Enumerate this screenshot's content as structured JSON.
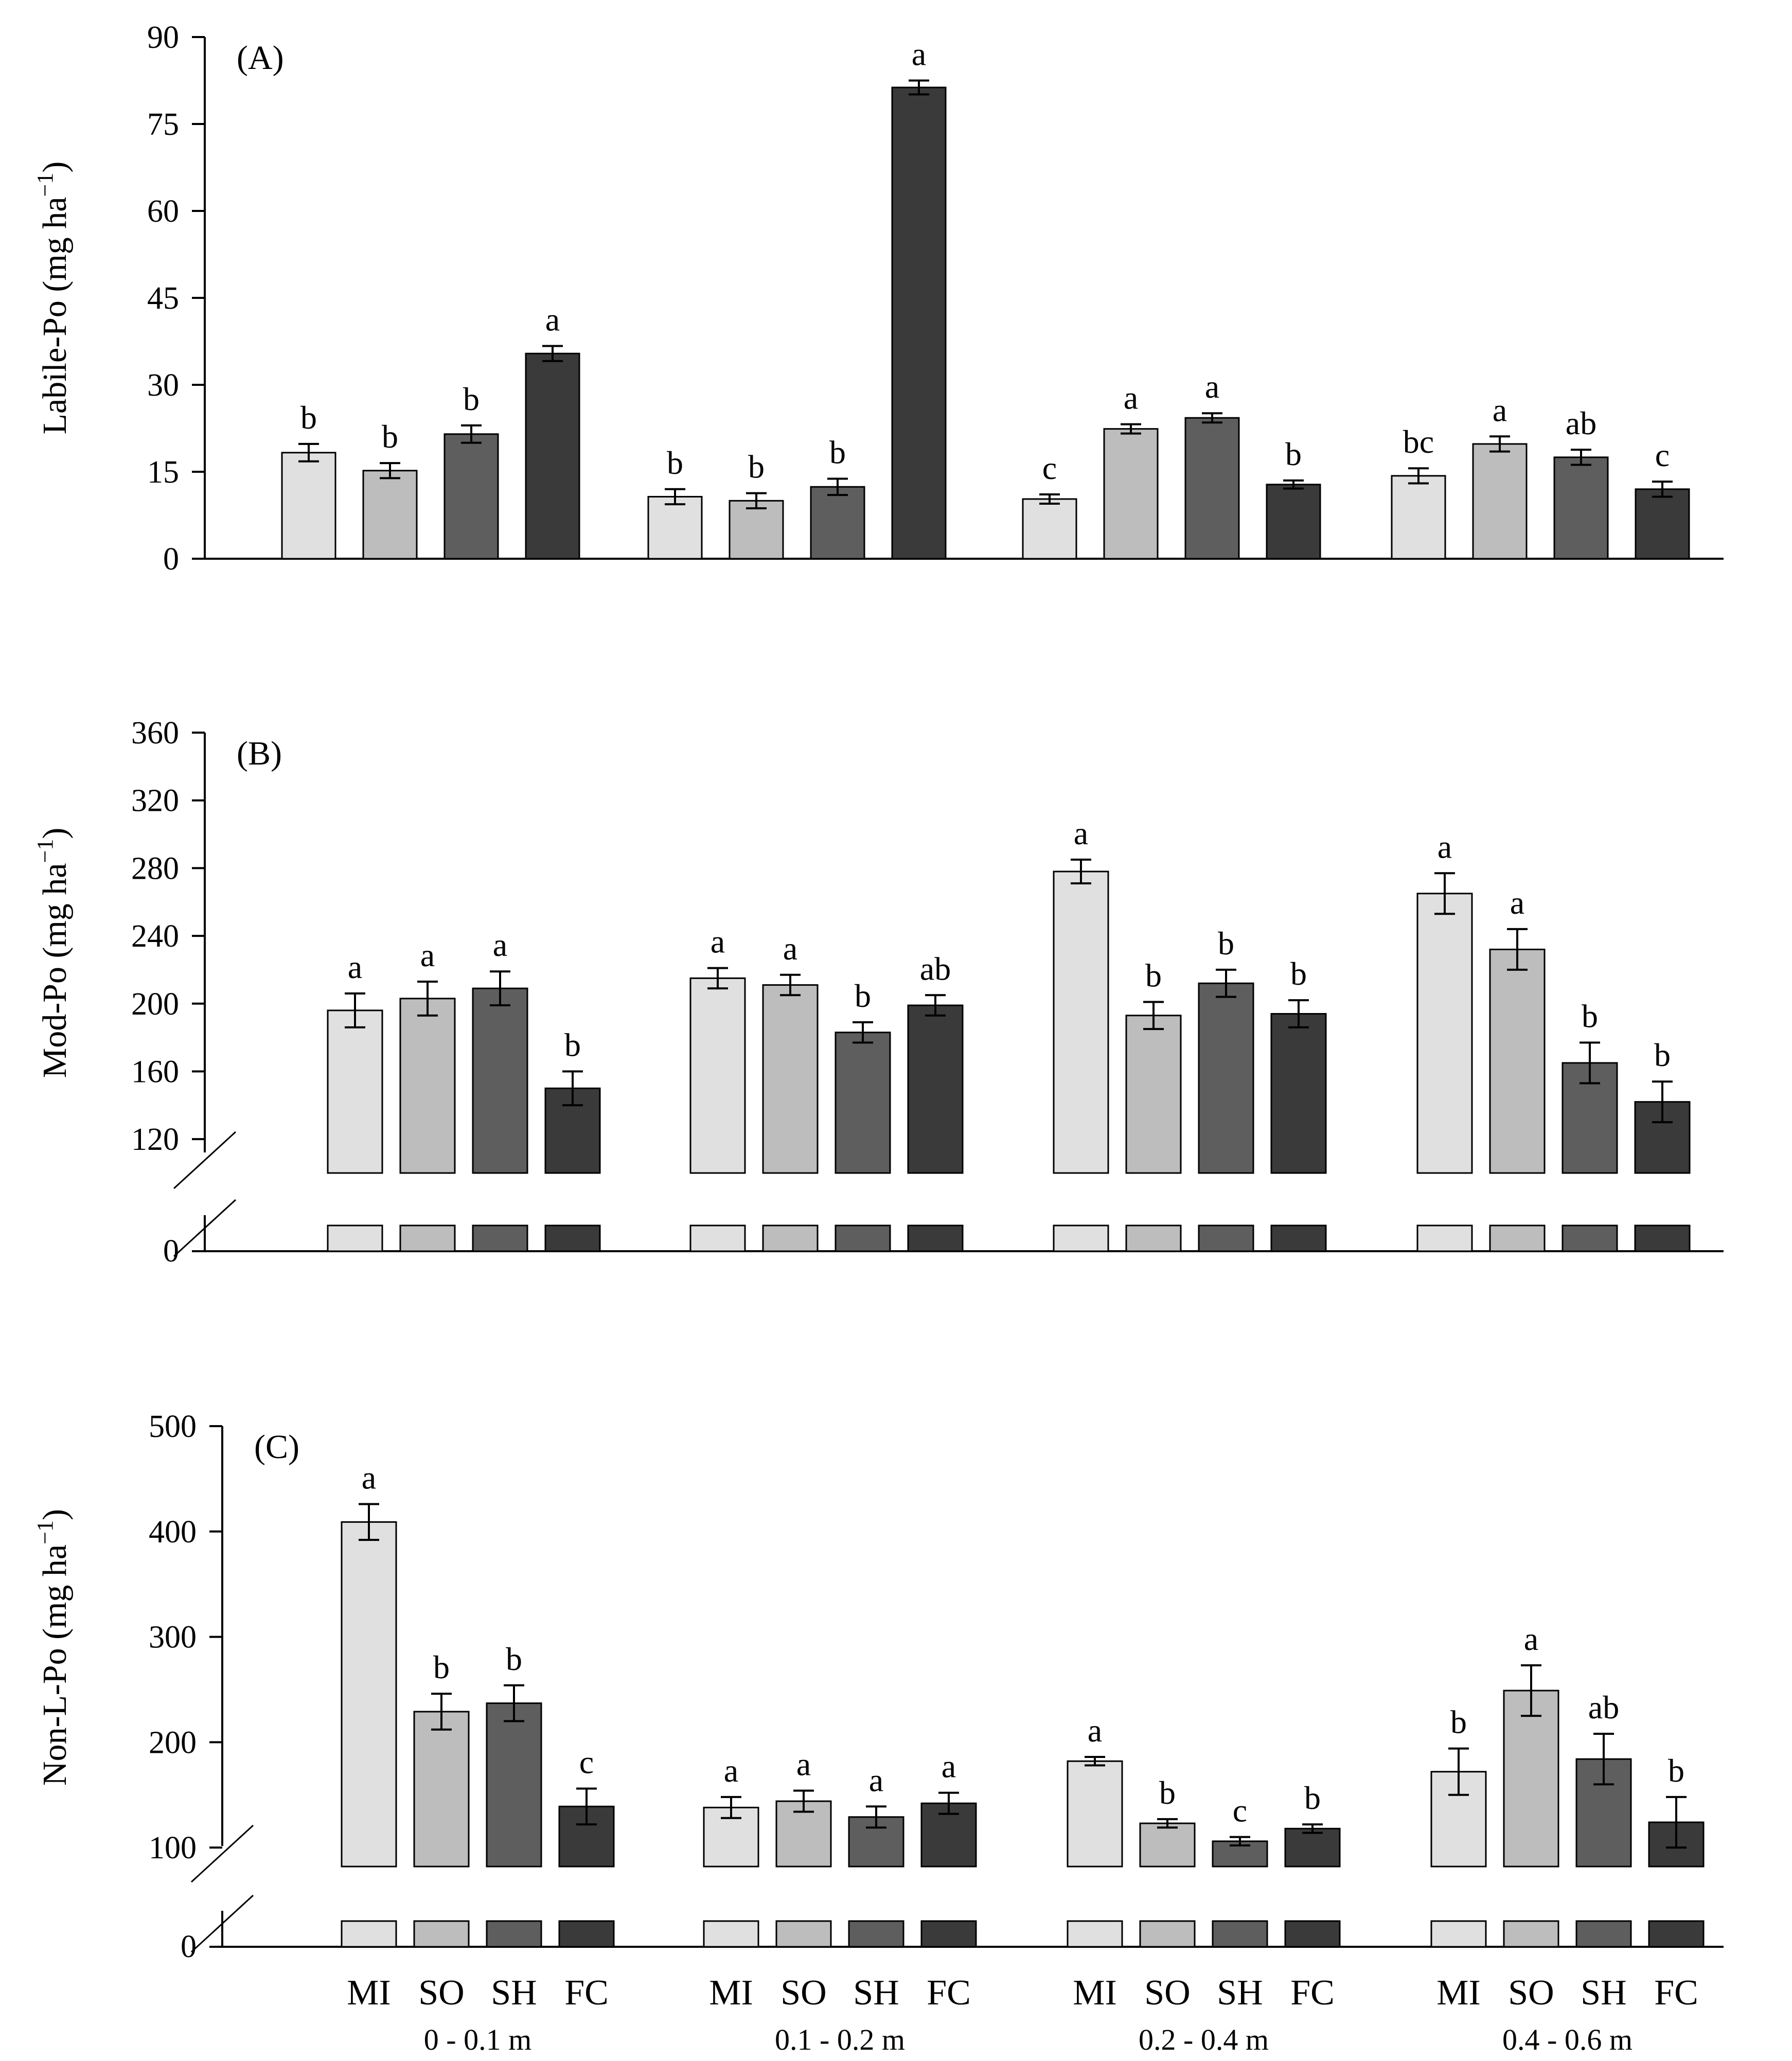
{
  "colors": {
    "MI": "#e0e0e0",
    "SO": "#bdbdbd",
    "SH": "#5e5e5e",
    "FC": "#3a3a3a",
    "axis": "#000000"
  },
  "chart_data": [
    {
      "type": "bar",
      "panel_label": "(A)",
      "ylabel_main": "Labile-Po (mg ha",
      "ylabel_sup": "−1",
      "ylabel_end": ")",
      "ylim": [
        0,
        90
      ],
      "yticks": [
        0,
        15,
        30,
        45,
        60,
        75,
        90
      ],
      "axis_break": false,
      "categories": [
        "0 - 0.1 m",
        "0.1 - 0.2 m",
        "0.2 - 0.4 m",
        "0.4 - 0.6 m"
      ],
      "series": [
        {
          "name": "MI",
          "values": [
            18.3,
            10.7,
            10.3,
            14.3
          ],
          "errors": [
            1.5,
            1.3,
            0.8,
            1.3
          ],
          "letters": [
            "b",
            "b",
            "c",
            "bc"
          ]
        },
        {
          "name": "SO",
          "values": [
            15.2,
            10.0,
            22.4,
            19.8
          ],
          "errors": [
            1.3,
            1.3,
            0.8,
            1.3
          ],
          "letters": [
            "b",
            "b",
            "a",
            "a"
          ]
        },
        {
          "name": "SH",
          "values": [
            21.5,
            12.4,
            24.3,
            17.5
          ],
          "errors": [
            1.5,
            1.4,
            0.8,
            1.3
          ],
          "letters": [
            "b",
            "b",
            "a",
            "ab"
          ]
        },
        {
          "name": "FC",
          "values": [
            35.4,
            81.3,
            12.8,
            12.0
          ],
          "errors": [
            1.3,
            1.2,
            0.7,
            1.3
          ],
          "letters": [
            "a",
            "a",
            "b",
            "c"
          ]
        }
      ]
    },
    {
      "type": "bar",
      "panel_label": "(B)",
      "ylabel_main": "Mod-Po (mg ha",
      "ylabel_sup": "−1",
      "ylabel_end": ")",
      "ylim": [
        100,
        360
      ],
      "yticks": [
        120,
        160,
        200,
        240,
        280,
        320,
        360
      ],
      "zero_label": "0",
      "axis_break": true,
      "categories": [
        "0 - 0.1 m",
        "0.1 - 0.2 m",
        "0.2 - 0.4 m",
        "0.4 - 0.6 m"
      ],
      "series": [
        {
          "name": "MI",
          "values": [
            196,
            215,
            278,
            265
          ],
          "errors": [
            10,
            6,
            7,
            12
          ],
          "letters": [
            "a",
            "a",
            "a",
            "a"
          ]
        },
        {
          "name": "SO",
          "values": [
            203,
            211,
            193,
            232
          ],
          "errors": [
            10,
            6,
            8,
            12
          ],
          "letters": [
            "a",
            "a",
            "b",
            "a"
          ]
        },
        {
          "name": "SH",
          "values": [
            209,
            183,
            212,
            165
          ],
          "errors": [
            10,
            6,
            8,
            12
          ],
          "letters": [
            "a",
            "b",
            "b",
            "b"
          ]
        },
        {
          "name": "FC",
          "values": [
            150,
            199,
            194,
            142
          ],
          "errors": [
            10,
            6,
            8,
            12
          ],
          "letters": [
            "b",
            "ab",
            "b",
            "b"
          ]
        }
      ]
    },
    {
      "type": "bar",
      "panel_label": "(C)",
      "ylabel_main": "Non-L-Po (mg ha",
      "ylabel_sup": "−1",
      "ylabel_end": ")",
      "ylim": [
        82,
        500
      ],
      "yticks": [
        100,
        200,
        300,
        400,
        500
      ],
      "zero_label": "0",
      "axis_break": true,
      "categories": [
        "0 - 0.1 m",
        "0.1 - 0.2 m",
        "0.2 - 0.4 m",
        "0.4 - 0.6 m"
      ],
      "xtick_labels": [
        "MI",
        "SO",
        "SH",
        "FC"
      ],
      "series": [
        {
          "name": "MI",
          "values": [
            409,
            138,
            182,
            172
          ],
          "errors": [
            17,
            10,
            4,
            22
          ],
          "letters": [
            "a",
            "a",
            "a",
            "b"
          ]
        },
        {
          "name": "SO",
          "values": [
            229,
            144,
            123,
            249
          ],
          "errors": [
            17,
            10,
            4,
            24
          ],
          "letters": [
            "b",
            "a",
            "b",
            "a"
          ]
        },
        {
          "name": "SH",
          "values": [
            237,
            129,
            106,
            184
          ],
          "errors": [
            17,
            10,
            4,
            24
          ],
          "letters": [
            "b",
            "a",
            "c",
            "ab"
          ]
        },
        {
          "name": "FC",
          "values": [
            139,
            142,
            118,
            124
          ],
          "errors": [
            17,
            10,
            4,
            24
          ],
          "letters": [
            "c",
            "a",
            "b",
            "b"
          ]
        }
      ]
    }
  ]
}
